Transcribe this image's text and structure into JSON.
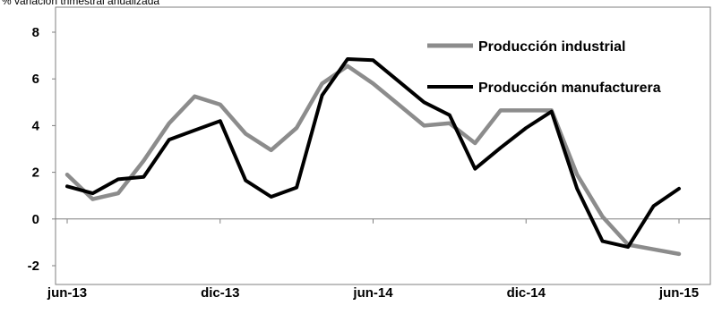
{
  "chart_data": {
    "type": "line",
    "subtitle": "% variación trimestral anualizada",
    "x": [
      "jun-13",
      "jul-13",
      "ago-13",
      "sep-13",
      "oct-13",
      "nov-13",
      "dic-13",
      "ene-14",
      "feb-14",
      "mar-14",
      "abr-14",
      "may-14",
      "jun-14",
      "jul-14",
      "ago-14",
      "sep-14",
      "oct-14",
      "nov-14",
      "dic-14",
      "ene-15",
      "feb-15",
      "mar-15",
      "abr-15",
      "may-15",
      "jun-15"
    ],
    "x_tick_labels": [
      "jun-13",
      "dic-13",
      "jun-14",
      "dic-14",
      "jun-15"
    ],
    "ylim": [
      -2,
      8
    ],
    "y_ticks": [
      -2,
      0,
      2,
      4,
      6,
      8
    ],
    "grid": false,
    "legend_position": "top-right",
    "series": [
      {
        "name": "Producción industrial",
        "color": "#8c8c8c",
        "values": [
          1.9,
          0.85,
          1.1,
          2.5,
          4.1,
          5.25,
          4.9,
          3.65,
          2.95,
          3.9,
          5.8,
          6.55,
          5.8,
          4.9,
          4.0,
          4.1,
          3.25,
          4.65,
          4.65,
          4.65,
          1.9,
          0.1,
          -1.1,
          -1.3,
          -1.5
        ]
      },
      {
        "name": "Producción manufacturera",
        "color": "#000000",
        "values": [
          1.4,
          1.1,
          1.7,
          1.8,
          3.4,
          3.8,
          4.2,
          1.65,
          0.95,
          1.35,
          5.3,
          6.85,
          6.8,
          5.9,
          5.0,
          4.45,
          2.15,
          3.05,
          3.9,
          4.6,
          1.3,
          -0.95,
          -1.2,
          0.55,
          1.3
        ]
      }
    ]
  }
}
